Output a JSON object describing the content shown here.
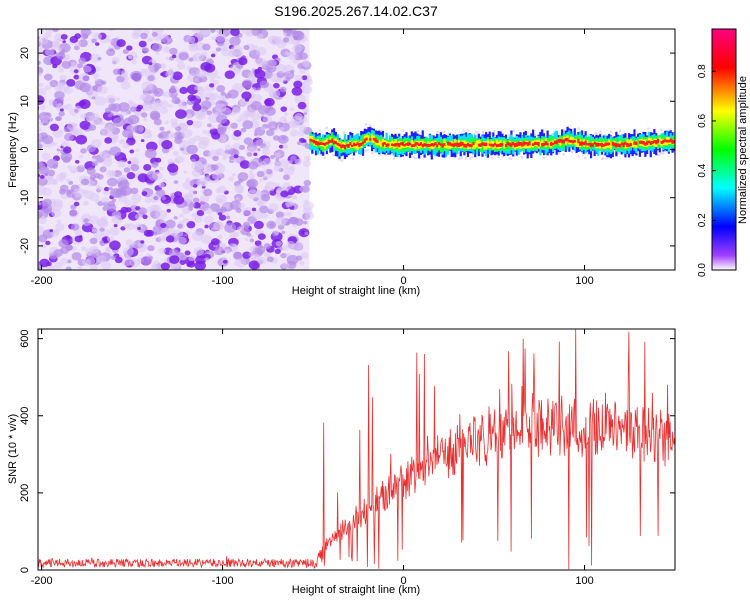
{
  "title": "S196.2025.267.14.02.C37",
  "colors": {
    "snr_line": "#e83030",
    "axis": "#000000",
    "background": "#ffffff",
    "noise_light": "#dcc8f4",
    "noise_mid": "#b48ae8",
    "noise_dark": "#7a1ee6"
  },
  "chart_data": [
    {
      "id": "spectrogram",
      "type": "heatmap",
      "title": "S196.2025.267.14.02.C37",
      "xlabel": "Height of straight line (km)",
      "ylabel": "Frequency (Hz)",
      "xlim": [
        -202,
        150
      ],
      "ylim": [
        -25,
        25
      ],
      "xticks": [
        -200,
        -100,
        0,
        100
      ],
      "xtick_labels": [
        "-200",
        "-100",
        "0",
        "100"
      ],
      "yticks": [
        -20,
        -10,
        0,
        10,
        20
      ],
      "ytick_labels": [
        "-20",
        "-10",
        "0",
        "10",
        "20"
      ],
      "colorbar": {
        "label": "Normalized spectral amplitude",
        "range": [
          0.0,
          0.97
        ],
        "ticks": [
          0.0,
          0.2,
          0.4,
          0.6,
          0.8
        ],
        "tick_labels": [
          "0.0",
          "0.2",
          "0.4",
          "0.6",
          "0.8"
        ],
        "colormap": [
          "#ffffff",
          "#8000ff",
          "#0000ff",
          "#00ffff",
          "#00ff00",
          "#ffff00",
          "#ff0000",
          "#ff0080"
        ]
      },
      "regions": [
        {
          "kind": "noise",
          "x_range": [
            -202,
            -52
          ],
          "freq_range": [
            -25,
            25
          ],
          "amplitude_max": 0.2
        },
        {
          "kind": "signal_band",
          "x_range": [
            -52,
            150
          ],
          "center_freq_hz": 1,
          "width_hz": 2,
          "amplitude_max": 0.97
        }
      ],
      "signal_trace": {
        "x": [
          -52,
          -45,
          -40,
          -35,
          -30,
          -25,
          -20,
          -15,
          -10,
          0,
          20,
          40,
          60,
          80,
          90,
          100,
          110,
          120,
          130,
          140,
          150
        ],
        "freq": [
          2,
          1,
          2,
          0.5,
          1,
          1,
          2.5,
          1.5,
          1,
          1,
          1,
          1,
          1,
          1.2,
          2,
          1.2,
          1,
          1,
          1.3,
          1.5,
          1.8
        ]
      }
    },
    {
      "id": "snr",
      "type": "line",
      "xlabel": "Height of straight line (km)",
      "ylabel": "SNR (10 * v/v)",
      "xlim": [
        -202,
        150
      ],
      "ylim": [
        0,
        625
      ],
      "xticks": [
        -200,
        -100,
        0,
        100
      ],
      "xtick_labels": [
        "-200",
        "-100",
        "0",
        "100"
      ],
      "yticks": [
        0,
        200,
        400,
        600
      ],
      "ytick_labels": [
        "0",
        "200",
        "400",
        "600"
      ],
      "series": [
        {
          "name": "SNR",
          "envelope_x": [
            -202,
            -50,
            -40,
            -30,
            -20,
            -10,
            0,
            10,
            20,
            30,
            40,
            50,
            60,
            70,
            80,
            90,
            100,
            110,
            120,
            130,
            140,
            150
          ],
          "envelope_baseline": [
            18,
            18,
            70,
            120,
            160,
            200,
            235,
            270,
            300,
            330,
            350,
            365,
            375,
            380,
            385,
            385,
            380,
            375,
            370,
            365,
            355,
            340
          ],
          "spike_max": 625
        }
      ]
    }
  ]
}
